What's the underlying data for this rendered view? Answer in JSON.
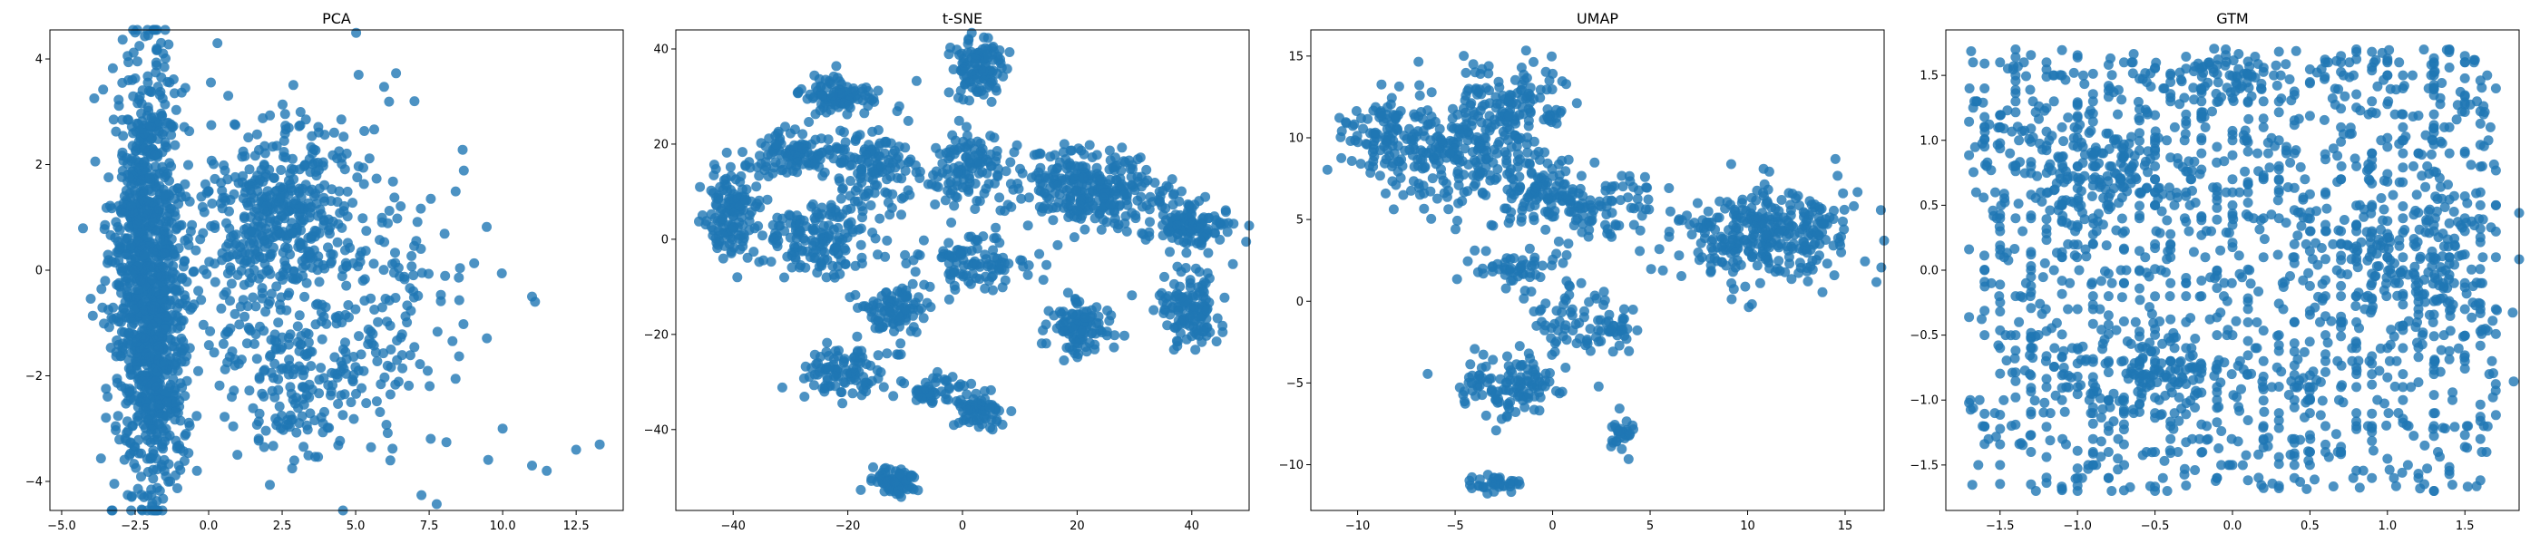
{
  "chart_data": [
    {
      "type": "scatter",
      "title": "PCA",
      "xlabel": "",
      "ylabel": "",
      "xlim": [
        -5.4,
        14.1
      ],
      "ylim": [
        -4.55,
        4.55
      ],
      "xticks": [
        -5.0,
        -2.5,
        0.0,
        2.5,
        5.0,
        7.5,
        10.0,
        12.5
      ],
      "xtick_labels": [
        "−5.0",
        "−2.5",
        "0.0",
        "2.5",
        "5.0",
        "7.5",
        "10.0",
        "12.5"
      ],
      "yticks": [
        -4,
        -2,
        0,
        2,
        4
      ],
      "ytick_labels": [
        "−4",
        "−2",
        "0",
        "2",
        "4"
      ],
      "color": "#1f77b4",
      "grid": false,
      "clusters": [
        {
          "cx": -2.1,
          "cy": 0.3,
          "sx": 0.6,
          "sy": 1.9,
          "n": 900
        },
        {
          "cx": -1.7,
          "cy": -2.3,
          "sx": 0.5,
          "sy": 1.0,
          "n": 250
        },
        {
          "cx": 2.4,
          "cy": 1.2,
          "sx": 1.2,
          "sy": 0.9,
          "n": 320
        },
        {
          "cx": 1.5,
          "cy": -0.5,
          "sx": 2.2,
          "sy": 1.4,
          "n": 260
        },
        {
          "cx": 5.5,
          "cy": -0.4,
          "sx": 1.6,
          "sy": 1.5,
          "n": 180
        },
        {
          "cx": 3.2,
          "cy": -2.3,
          "sx": 1.0,
          "sy": 0.7,
          "n": 90
        }
      ],
      "points": [
        [
          0.3,
          4.3
        ],
        [
          11.1,
          -0.6
        ],
        [
          11.0,
          -0.5
        ],
        [
          10.0,
          -3.0
        ],
        [
          11.0,
          -3.7
        ],
        [
          11.5,
          -3.8
        ],
        [
          12.5,
          -3.4
        ],
        [
          13.3,
          -3.3
        ],
        [
          -2.2,
          -4.3
        ],
        [
          -2.6,
          3.6
        ],
        [
          -0.4,
          -3.8
        ],
        [
          7.0,
          3.2
        ],
        [
          5.1,
          3.7
        ]
      ]
    },
    {
      "type": "scatter",
      "title": "t-SNE",
      "xlabel": "",
      "ylabel": "",
      "xlim": [
        -50,
        50
      ],
      "ylim": [
        -57,
        44
      ],
      "xticks": [
        -40,
        -20,
        0,
        20,
        40
      ],
      "xtick_labels": [
        "−40",
        "−20",
        "0",
        "20",
        "40"
      ],
      "yticks": [
        -40,
        -20,
        0,
        20,
        40
      ],
      "ytick_labels": [
        "−40",
        "−20",
        "0",
        "20",
        "40"
      ],
      "color": "#1f77b4",
      "grid": false,
      "clusters": [
        {
          "cx": -40,
          "cy": 5,
          "sx": 2.5,
          "sy": 5,
          "n": 140
        },
        {
          "cx": -28,
          "cy": 18,
          "sx": 4,
          "sy": 2.5,
          "n": 120
        },
        {
          "cx": -22,
          "cy": 30,
          "sx": 3,
          "sy": 2,
          "n": 100
        },
        {
          "cx": -25,
          "cy": 0,
          "sx": 5,
          "sy": 4,
          "n": 160
        },
        {
          "cx": -15,
          "cy": 15,
          "sx": 3,
          "sy": 4,
          "n": 110
        },
        {
          "cx": 3,
          "cy": 36,
          "sx": 2.5,
          "sy": 3,
          "n": 110
        },
        {
          "cx": 0,
          "cy": 15,
          "sx": 4,
          "sy": 4,
          "n": 110
        },
        {
          "cx": 22,
          "cy": 10,
          "sx": 7,
          "sy": 4,
          "n": 300
        },
        {
          "cx": 40,
          "cy": 3,
          "sx": 3.5,
          "sy": 3,
          "n": 120
        },
        {
          "cx": 2,
          "cy": -5,
          "sx": 5,
          "sy": 3,
          "n": 110
        },
        {
          "cx": -12,
          "cy": -15,
          "sx": 3,
          "sy": 3,
          "n": 90
        },
        {
          "cx": 20,
          "cy": -18,
          "sx": 3,
          "sy": 3,
          "n": 100
        },
        {
          "cx": 40,
          "cy": -15,
          "sx": 3,
          "sy": 4,
          "n": 120
        },
        {
          "cx": -20,
          "cy": -28,
          "sx": 4,
          "sy": 3,
          "n": 100
        },
        {
          "cx": -5,
          "cy": -32,
          "sx": 3,
          "sy": 2,
          "n": 50
        },
        {
          "cx": 3,
          "cy": -36,
          "sx": 2,
          "sy": 2,
          "n": 60
        },
        {
          "cx": -12,
          "cy": -51,
          "sx": 2,
          "sy": 1.5,
          "n": 70
        }
      ],
      "points": []
    },
    {
      "type": "scatter",
      "title": "UMAP",
      "xlabel": "",
      "ylabel": "",
      "xlim": [
        -12.4,
        17.0
      ],
      "ylim": [
        -12.8,
        16.6
      ],
      "xticks": [
        -10,
        -5,
        0,
        5,
        10,
        15
      ],
      "xtick_labels": [
        "−10",
        "−5",
        "0",
        "5",
        "10",
        "15"
      ],
      "yticks": [
        -10,
        -5,
        0,
        5,
        10,
        15
      ],
      "ytick_labels": [
        "−10",
        "−5",
        "0",
        "5",
        "10",
        "15"
      ],
      "color": "#1f77b4",
      "grid": false,
      "clusters": [
        {
          "cx": -9,
          "cy": 10,
          "sx": 1.0,
          "sy": 1.2,
          "n": 90
        },
        {
          "cx": -5,
          "cy": 9,
          "sx": 1.8,
          "sy": 2.0,
          "n": 220
        },
        {
          "cx": -2,
          "cy": 12,
          "sx": 1.5,
          "sy": 1.5,
          "n": 120
        },
        {
          "cx": -1,
          "cy": 7,
          "sx": 1.2,
          "sy": 1.0,
          "n": 80
        },
        {
          "cx": 2,
          "cy": 6,
          "sx": 2.0,
          "sy": 1.0,
          "n": 100
        },
        {
          "cx": 11,
          "cy": 4,
          "sx": 2.5,
          "sy": 1.5,
          "n": 320
        },
        {
          "cx": -2,
          "cy": 2,
          "sx": 1.5,
          "sy": 0.5,
          "n": 50
        },
        {
          "cx": 1,
          "cy": -1,
          "sx": 1.5,
          "sy": 1.0,
          "n": 60
        },
        {
          "cx": -2,
          "cy": -5,
          "sx": 1.3,
          "sy": 1.0,
          "n": 120
        },
        {
          "cx": 3,
          "cy": -2,
          "sx": 0.7,
          "sy": 0.6,
          "n": 30
        },
        {
          "cx": 3.5,
          "cy": -8,
          "sx": 0.4,
          "sy": 0.5,
          "n": 30
        },
        {
          "cx": -3,
          "cy": -11.2,
          "sx": 0.8,
          "sy": 0.3,
          "n": 40
        }
      ],
      "points": [
        [
          14.5,
          8.7
        ]
      ]
    },
    {
      "type": "scatter",
      "title": "GTM",
      "xlabel": "",
      "ylabel": "",
      "xlim": [
        -1.85,
        1.85
      ],
      "ylim": [
        -1.85,
        1.85
      ],
      "xticks": [
        -1.5,
        -1.0,
        -0.5,
        0.0,
        0.5,
        1.0,
        1.5
      ],
      "xtick_labels": [
        "−1.5",
        "−1.0",
        "−0.5",
        "0.0",
        "0.5",
        "1.0",
        "1.5"
      ],
      "yticks": [
        -1.5,
        -1.0,
        -0.5,
        0.0,
        0.5,
        1.0,
        1.5
      ],
      "ytick_labels": [
        "−1.5",
        "−1.0",
        "−0.5",
        "0.0",
        "0.5",
        "1.0",
        "1.5"
      ],
      "color": "#1f77b4",
      "grid": false,
      "uniform": {
        "xmin": -1.7,
        "xmax": 1.7,
        "ymin": -1.7,
        "ymax": 1.7,
        "n": 1500
      },
      "clusters": [
        {
          "cx": -0.9,
          "cy": 0.7,
          "sx": 0.3,
          "sy": 0.2,
          "n": 120
        },
        {
          "cx": 1.2,
          "cy": 0.1,
          "sx": 0.25,
          "sy": 0.4,
          "n": 150
        },
        {
          "cx": -0.5,
          "cy": -0.8,
          "sx": 0.3,
          "sy": 0.15,
          "n": 100
        },
        {
          "cx": 0.0,
          "cy": 1.5,
          "sx": 0.15,
          "sy": 0.1,
          "n": 50
        }
      ],
      "points": []
    }
  ]
}
